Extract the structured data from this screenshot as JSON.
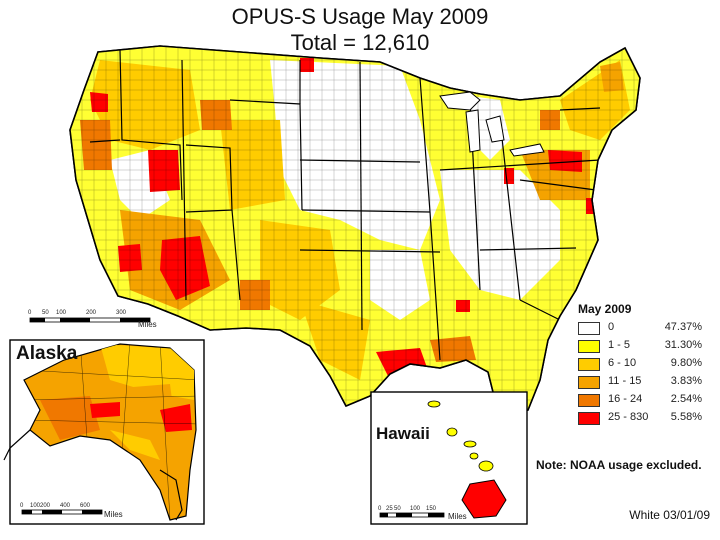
{
  "title": "OPUS-S Usage May 2009",
  "subtitle": "Total = 12,610",
  "legend": {
    "title": "May 2009",
    "items": [
      {
        "range": "0",
        "percent": "47.37%",
        "color": "#ffffff"
      },
      {
        "range": "1 - 5",
        "percent": "31.30%",
        "color": "#ffff00"
      },
      {
        "range": "6 - 10",
        "percent": "9.80%",
        "color": "#ffcc00"
      },
      {
        "range": "11 - 15",
        "percent": "3.83%",
        "color": "#f5a300"
      },
      {
        "range": "16 - 24",
        "percent": "2.54%",
        "color": "#f07800"
      },
      {
        "range": "25 - 830",
        "percent": "5.58%",
        "color": "#ff0000"
      }
    ]
  },
  "insets": {
    "alaska": "Alaska",
    "hawaii": "Hawaii"
  },
  "scale_bars": {
    "main": {
      "ticks": [
        "0",
        "50",
        "100",
        "200",
        "300"
      ],
      "unit": "Miles"
    },
    "alaska": {
      "ticks": [
        "0",
        "100",
        "200",
        "400",
        "600"
      ],
      "unit": "Miles"
    },
    "hawaii": {
      "ticks": [
        "0",
        "25",
        "50",
        "100",
        "150"
      ],
      "unit": "Miles"
    }
  },
  "note": "Note: NOAA usage excluded.",
  "credit": "White 03/01/09"
}
